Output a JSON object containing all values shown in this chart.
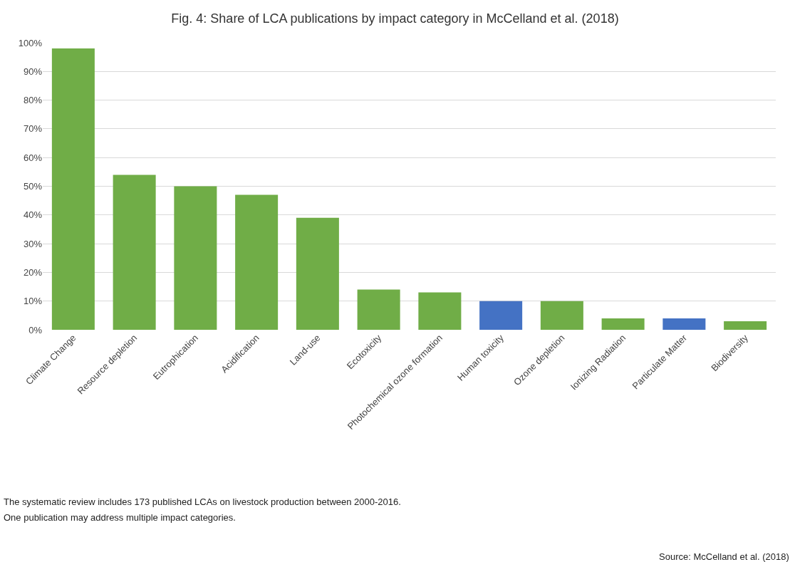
{
  "chart_data": {
    "type": "bar",
    "title": "Fig. 4: Share of LCA publications by impact category in McCelland et al. (2018)",
    "categories": [
      "Climate Change",
      "Resource depletion",
      "Eutrophication",
      "Acidification",
      "Land-use",
      "Ecotoxicity",
      "Photochemical ozone formation",
      "Human toxicity",
      "Ozone depletion",
      "Ionizing Radiation",
      "Particulate Matter",
      "Biodiversity"
    ],
    "values": [
      98,
      54,
      50,
      47,
      39,
      14,
      13,
      10,
      10,
      4,
      4,
      3
    ],
    "colors": [
      "#70ad47",
      "#70ad47",
      "#70ad47",
      "#70ad47",
      "#70ad47",
      "#70ad47",
      "#70ad47",
      "#4472c4",
      "#70ad47",
      "#70ad47",
      "#4472c4",
      "#70ad47"
    ],
    "ylim": [
      0,
      100
    ],
    "yticks": [
      {
        "value": 0,
        "label": "0%"
      },
      {
        "value": 10,
        "label": "10%"
      },
      {
        "value": 20,
        "label": "20%"
      },
      {
        "value": 30,
        "label": "30%"
      },
      {
        "value": 40,
        "label": "40%"
      },
      {
        "value": 50,
        "label": "50%"
      },
      {
        "value": 60,
        "label": "60%"
      },
      {
        "value": 70,
        "label": "70%"
      },
      {
        "value": 80,
        "label": "80%"
      },
      {
        "value": 90,
        "label": "90%"
      },
      {
        "value": 100,
        "label": "100%"
      }
    ],
    "grid": "y",
    "annotations": [
      "The systematic review includes 173 published LCAs on livestock production between 2000-2016.",
      "One publication may address multiple impact categories.",
      "Source: McCelland et al. (2018)"
    ]
  }
}
